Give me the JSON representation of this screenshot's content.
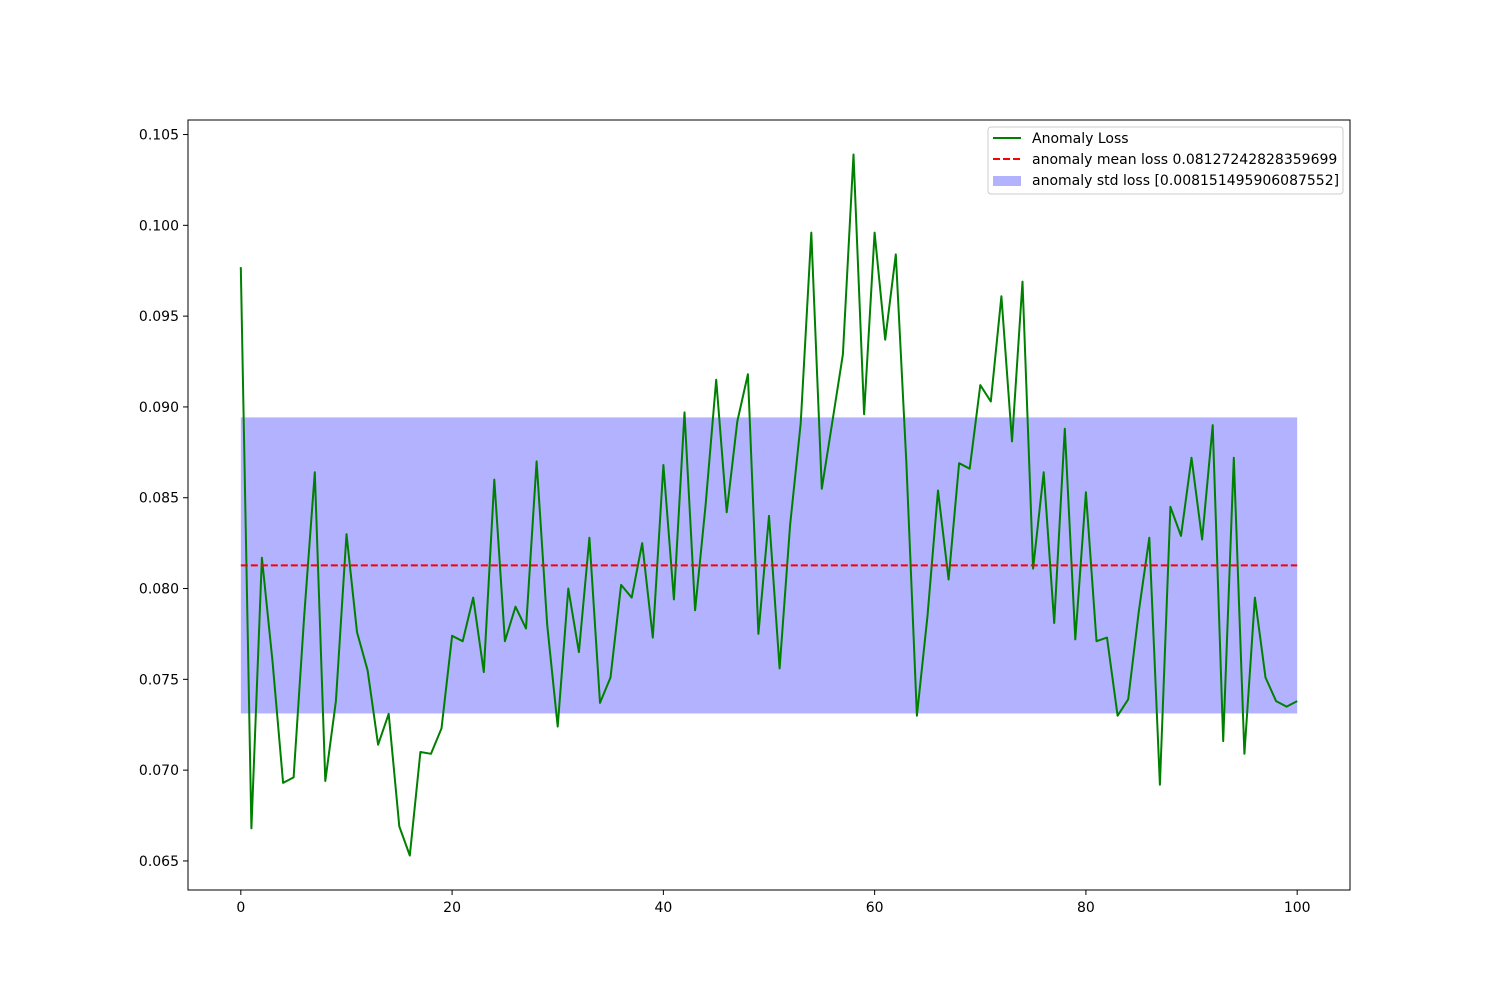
{
  "chart_data": {
    "type": "line",
    "title": "",
    "xlabel": "",
    "ylabel": "",
    "xlim": [
      -5,
      105
    ],
    "ylim": [
      0.0634,
      0.1058
    ],
    "xticks": [
      0,
      20,
      40,
      60,
      80,
      100
    ],
    "xtick_labels": [
      "0",
      "20",
      "40",
      "60",
      "80",
      "100"
    ],
    "yticks": [
      0.065,
      0.07,
      0.075,
      0.08,
      0.085,
      0.09,
      0.095,
      0.1,
      0.105
    ],
    "ytick_labels": [
      "0.065",
      "0.070",
      "0.075",
      "0.080",
      "0.085",
      "0.090",
      "0.095",
      "0.100",
      "0.105"
    ],
    "grid": false,
    "legend_position": "top-right",
    "series": [
      {
        "name": "Anomaly Loss",
        "style": "solid",
        "color": "#008000",
        "x": [
          0,
          1,
          2,
          3,
          4,
          5,
          6,
          7,
          8,
          9,
          10,
          11,
          12,
          13,
          14,
          15,
          16,
          17,
          18,
          19,
          20,
          21,
          22,
          23,
          24,
          25,
          26,
          27,
          28,
          29,
          30,
          31,
          32,
          33,
          34,
          35,
          36,
          37,
          38,
          39,
          40,
          41,
          42,
          43,
          44,
          45,
          46,
          47,
          48,
          49,
          50,
          51,
          52,
          53,
          54,
          55,
          56,
          57,
          58,
          59,
          60,
          61,
          62,
          63,
          64,
          65,
          66,
          67,
          68,
          69,
          70,
          71,
          72,
          73,
          74,
          75,
          76,
          77,
          78,
          79,
          80,
          81,
          82,
          83,
          84,
          85,
          86,
          87,
          88,
          89,
          90,
          91,
          92,
          93,
          94,
          95,
          96,
          97,
          98,
          99,
          100
        ],
        "values": [
          0.0977,
          0.0668,
          0.0817,
          0.076,
          0.0693,
          0.0696,
          0.0785,
          0.0864,
          0.0694,
          0.0738,
          0.083,
          0.0776,
          0.0755,
          0.0714,
          0.0731,
          0.0669,
          0.0653,
          0.071,
          0.0709,
          0.0723,
          0.0774,
          0.0771,
          0.0795,
          0.0754,
          0.086,
          0.0771,
          0.079,
          0.0778,
          0.087,
          0.078,
          0.0724,
          0.08,
          0.0765,
          0.0828,
          0.0737,
          0.0751,
          0.0802,
          0.0795,
          0.0825,
          0.0773,
          0.0868,
          0.0794,
          0.0897,
          0.0788,
          0.0846,
          0.0915,
          0.0842,
          0.0892,
          0.0918,
          0.0775,
          0.084,
          0.0756,
          0.0835,
          0.0891,
          0.0996,
          0.0855,
          0.0892,
          0.0929,
          0.1039,
          0.0896,
          0.0996,
          0.0937,
          0.0984,
          0.087,
          0.073,
          0.0785,
          0.0854,
          0.0805,
          0.0869,
          0.0866,
          0.0912,
          0.0903,
          0.0961,
          0.0881,
          0.0969,
          0.0811,
          0.0864,
          0.0781,
          0.0888,
          0.0772,
          0.0853,
          0.0771,
          0.0773,
          0.073,
          0.0739,
          0.0787,
          0.0828,
          0.0692,
          0.0845,
          0.0829,
          0.0872,
          0.0827,
          0.089,
          0.0716,
          0.0872,
          0.0709,
          0.0795,
          0.0751,
          0.0738,
          0.0735,
          0.0738
        ]
      },
      {
        "name": "anomaly mean loss 0.08127242828359699",
        "style": "dashed",
        "color": "#ff0000",
        "x": [
          0,
          100
        ],
        "values": [
          0.08127242828359699,
          0.08127242828359699
        ]
      },
      {
        "name": "anomaly std loss [0.008151495906087552]",
        "style": "band",
        "color": "#0000ff",
        "opacity": 0.3,
        "x": [
          0,
          100
        ],
        "lower": 0.07312093237750944,
        "upper": 0.08942392418968453
      }
    ]
  }
}
